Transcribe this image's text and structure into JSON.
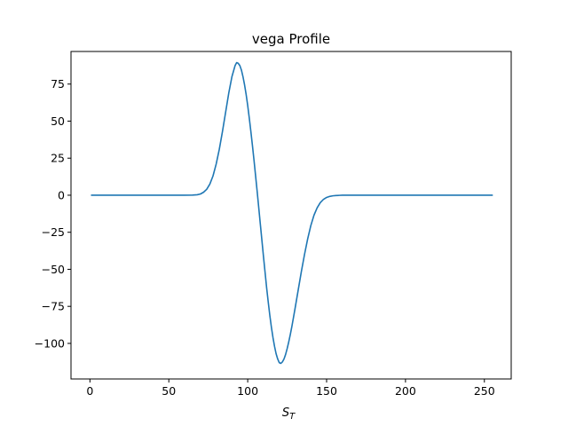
{
  "chart_data": {
    "type": "line",
    "title": "vega Profile",
    "xlabel": "S",
    "xlabel_sub": "T",
    "ylabel": "",
    "xlim": [
      -12,
      267
    ],
    "ylim": [
      -124,
      97
    ],
    "xticks": [
      0,
      50,
      100,
      150,
      200,
      250
    ],
    "yticks": [
      75,
      50,
      25,
      0,
      -25,
      -50,
      -75,
      -100
    ],
    "ytick_labels": [
      "75",
      "50",
      "25",
      "0",
      "−25",
      "−50",
      "−75",
      "−100"
    ],
    "grid": false,
    "legend": "none",
    "series": [
      {
        "color": "#1f77b4",
        "x": [
          1,
          10,
          20,
          30,
          40,
          50,
          60,
          65,
          68,
          70,
          72,
          74,
          76,
          78,
          80,
          82,
          84,
          86,
          88,
          90,
          92,
          93,
          94,
          95,
          96,
          97,
          98,
          99,
          100,
          101,
          102,
          103,
          104,
          105,
          106,
          107,
          108,
          109,
          110,
          111,
          112,
          113,
          114,
          115,
          116,
          117,
          118,
          119,
          120,
          121,
          122,
          123,
          124,
          125,
          126,
          127,
          128,
          129,
          130,
          132,
          134,
          136,
          138,
          140,
          142,
          144,
          146,
          148,
          150,
          152,
          154,
          156,
          158,
          160,
          165,
          170,
          180,
          200,
          220,
          240,
          255
        ],
        "y": [
          0,
          0,
          0,
          0,
          0,
          0,
          0,
          0.1,
          0.3,
          0.8,
          2,
          4,
          7.5,
          13,
          21,
          31,
          43,
          56,
          69,
          80,
          87.5,
          89.5,
          89,
          87.5,
          84.5,
          80,
          74.5,
          68,
          60.5,
          52,
          43,
          33.5,
          23.5,
          13,
          2.5,
          -8.5,
          -19.5,
          -30.5,
          -41.5,
          -52,
          -62.5,
          -72,
          -81,
          -89,
          -96,
          -102,
          -107,
          -110.5,
          -113,
          -113.5,
          -112.5,
          -110.5,
          -107.5,
          -103.5,
          -99,
          -94,
          -88.5,
          -82.5,
          -76.5,
          -64,
          -51.5,
          -40,
          -29.5,
          -20.5,
          -13.5,
          -8.5,
          -5,
          -2.8,
          -1.5,
          -0.8,
          -0.4,
          -0.2,
          -0.1,
          0,
          0,
          0,
          0,
          0,
          0,
          0,
          0
        ]
      }
    ]
  }
}
